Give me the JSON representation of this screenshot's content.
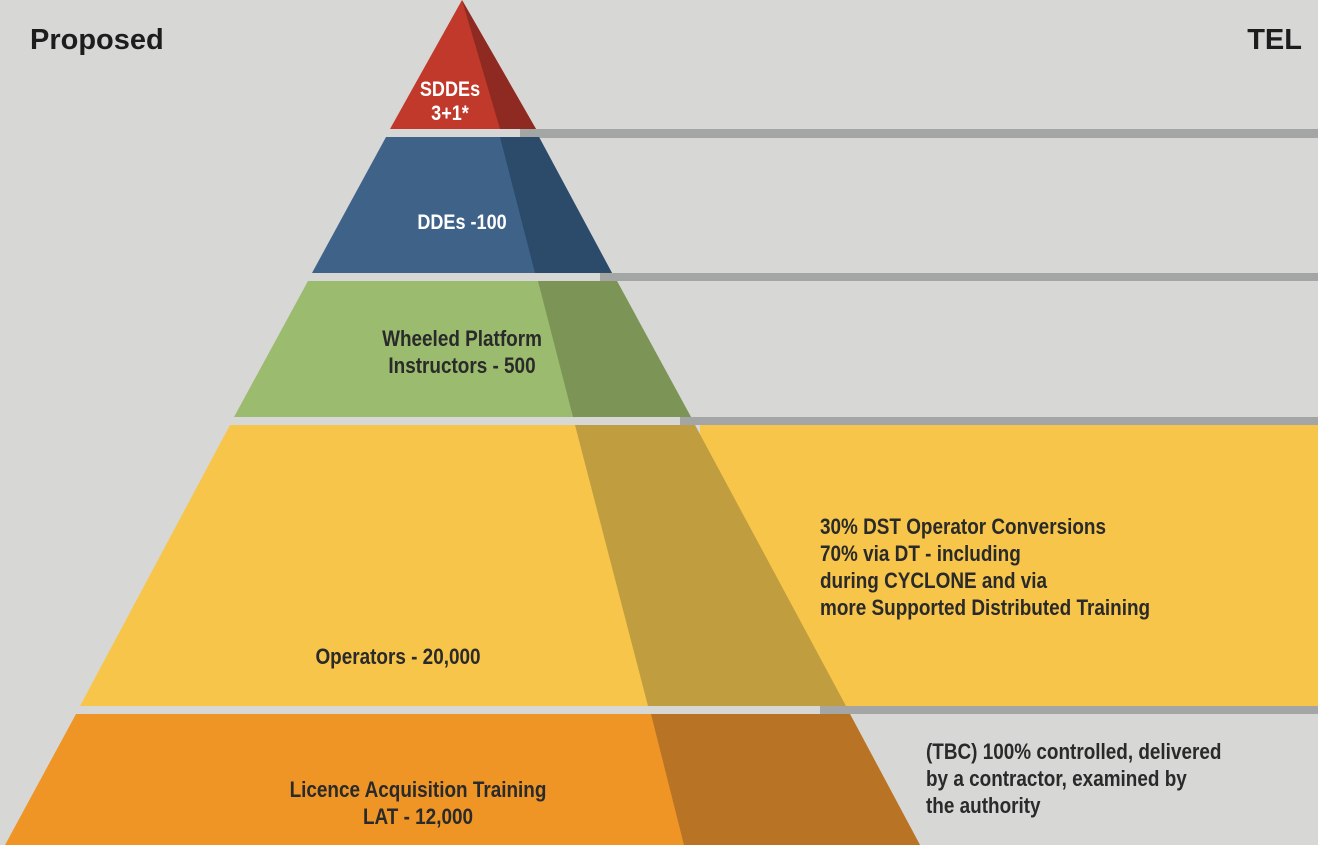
{
  "header": {
    "left_title": "Proposed",
    "right_title": "TEL"
  },
  "tiers": [
    {
      "lines": [
        "SDDEs",
        "3+1*"
      ],
      "color": "#c0392b",
      "shade": "#8e2a22",
      "text_color": "#ffffff"
    },
    {
      "lines": [
        "DDEs -100"
      ],
      "color": "#3e6288",
      "shade": "#2c4a6a",
      "text_color": "#ffffff"
    },
    {
      "lines": [
        "Wheeled Platform",
        "Instructors - 500"
      ],
      "color": "#9bbb6f",
      "shade": "#7c9557",
      "text_color": "#2a2a2a"
    },
    {
      "lines": [
        "Operators - 20,000"
      ],
      "color": "#f7c54a",
      "shade": "#c09d3e",
      "text_color": "#2a2a2a"
    },
    {
      "lines": [
        "Licence Acquisition Training",
        "LAT - 12,000"
      ],
      "color": "#ef9526",
      "shade": "#b97324",
      "text_color": "#2a2a2a"
    }
  ],
  "notes": {
    "operators": [
      "30% DST Operator Conversions",
      "70% via DT - including",
      "during CYCLONE and via",
      "more Supported Distributed Training"
    ],
    "lat": [
      "(TBC) 100% controlled, delivered",
      "by a contractor, examined by",
      "the authority"
    ]
  },
  "colors": {
    "background": "#d7d7d6",
    "band_line": "#a4a6a6",
    "operators_band": "#f7c54a"
  }
}
